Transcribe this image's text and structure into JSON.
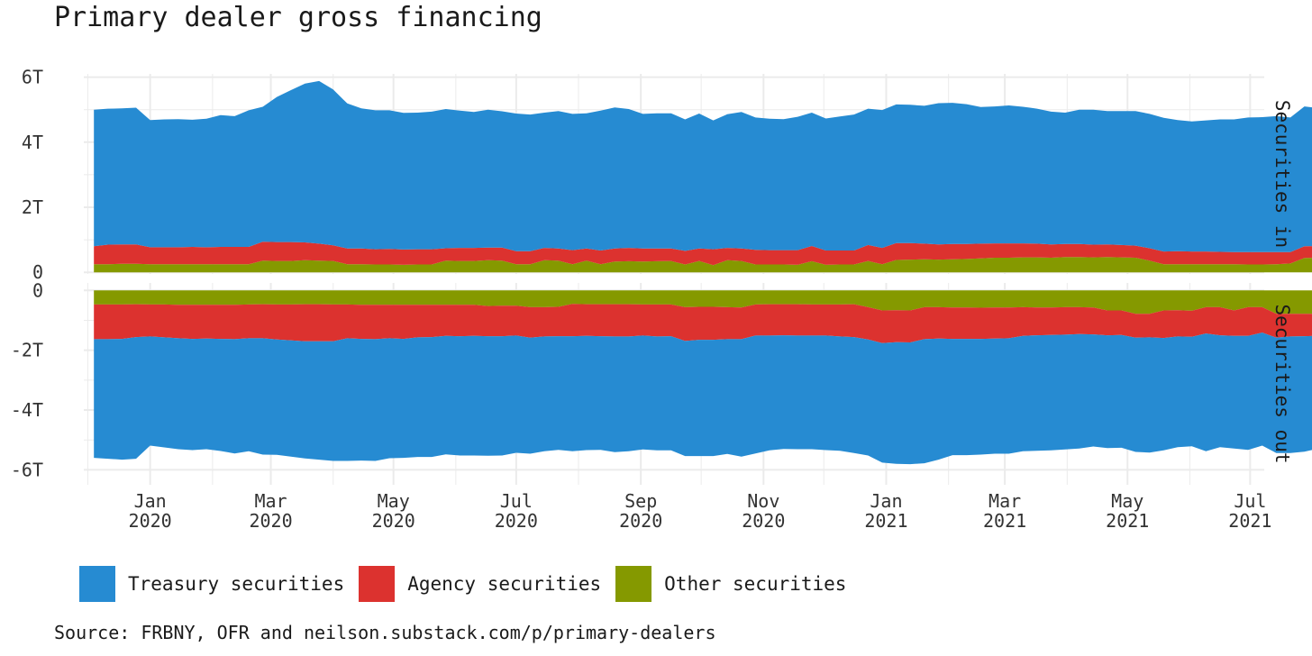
{
  "title": "Primary dealer gross financing",
  "caption": "Source: FRBNY, OFR and neilson.substack.com/p/primary-dealers",
  "colors": {
    "treasury": "#268bd2",
    "agency": "#dc322f",
    "other": "#859900",
    "grid": "#ebebeb"
  },
  "legend": [
    {
      "label": "Treasury securities",
      "color": "#268bd2"
    },
    {
      "label": "Agency securities",
      "color": "#dc322f"
    },
    {
      "label": "Other securities",
      "color": "#859900"
    }
  ],
  "chart_data": {
    "type": "area",
    "title": "Primary dealer gross financing",
    "x_start": "2019-12-04",
    "x_step_days": 7,
    "x_range": [
      "2019-11-29",
      "2021-07-08"
    ],
    "x_ticks": [
      {
        "date": "2020-01-01",
        "label": [
          "Jan",
          "2020"
        ]
      },
      {
        "date": "2020-03-01",
        "label": [
          "Mar",
          "2020"
        ]
      },
      {
        "date": "2020-05-01",
        "label": [
          "May",
          "2020"
        ]
      },
      {
        "date": "2020-07-01",
        "label": [
          "Jul",
          "2020"
        ]
      },
      {
        "date": "2020-09-01",
        "label": [
          "Sep",
          "2020"
        ]
      },
      {
        "date": "2020-11-01",
        "label": [
          "Nov",
          "2020"
        ]
      },
      {
        "date": "2021-01-01",
        "label": [
          "Jan",
          "2021"
        ]
      },
      {
        "date": "2021-03-01",
        "label": [
          "Mar",
          "2021"
        ]
      },
      {
        "date": "2021-05-01",
        "label": [
          "May",
          "2021"
        ]
      },
      {
        "date": "2021-07-01",
        "label": [
          "Jul",
          "2021"
        ]
      }
    ],
    "legend_position": "bottom",
    "panels": [
      {
        "facet_label": "Securities in",
        "y_range": [
          -0.05,
          6.1
        ],
        "y_ticks": [
          {
            "v": 0,
            "label": "0"
          },
          {
            "v": 2,
            "label": "2T"
          },
          {
            "v": 4,
            "label": "4T"
          },
          {
            "v": 6,
            "label": "6T"
          }
        ],
        "series": [
          {
            "name": "Other securities",
            "key": "other",
            "values": [
              0.25,
              0.25,
              0.26,
              0.26,
              0.25,
              0.25,
              0.25,
              0.25,
              0.25,
              0.25,
              0.25,
              0.25,
              0.36,
              0.35,
              0.35,
              0.37,
              0.36,
              0.35,
              0.25,
              0.25,
              0.24,
              0.24,
              0.23,
              0.24,
              0.24,
              0.36,
              0.35,
              0.35,
              0.37,
              0.36,
              0.25,
              0.25,
              0.37,
              0.36,
              0.25,
              0.36,
              0.25,
              0.33,
              0.34,
              0.33,
              0.34,
              0.35,
              0.24,
              0.35,
              0.22,
              0.37,
              0.35,
              0.24,
              0.24,
              0.24,
              0.23,
              0.34,
              0.23,
              0.24,
              0.24,
              0.35,
              0.25,
              0.38,
              0.39,
              0.4,
              0.39,
              0.4,
              0.41,
              0.43,
              0.45,
              0.45,
              0.46,
              0.46,
              0.45,
              0.47,
              0.47,
              0.46,
              0.47,
              0.46,
              0.45,
              0.36,
              0.25,
              0.25,
              0.25,
              0.25,
              0.25,
              0.25,
              0.24,
              0.24,
              0.25,
              0.27,
              0.44,
              0.45
            ]
          },
          {
            "name": "Agency securities",
            "key": "agency",
            "values": [
              0.55,
              0.6,
              0.6,
              0.6,
              0.52,
              0.52,
              0.52,
              0.53,
              0.52,
              0.53,
              0.53,
              0.53,
              0.58,
              0.58,
              0.58,
              0.55,
              0.52,
              0.48,
              0.48,
              0.48,
              0.47,
              0.48,
              0.47,
              0.47,
              0.47,
              0.38,
              0.4,
              0.4,
              0.39,
              0.4,
              0.4,
              0.4,
              0.38,
              0.37,
              0.43,
              0.37,
              0.42,
              0.4,
              0.41,
              0.4,
              0.39,
              0.38,
              0.42,
              0.38,
              0.49,
              0.38,
              0.38,
              0.45,
              0.44,
              0.44,
              0.45,
              0.47,
              0.44,
              0.43,
              0.43,
              0.49,
              0.5,
              0.52,
              0.51,
              0.48,
              0.47,
              0.47,
              0.46,
              0.45,
              0.44,
              0.44,
              0.43,
              0.42,
              0.41,
              0.4,
              0.4,
              0.39,
              0.39,
              0.38,
              0.37,
              0.38,
              0.39,
              0.4,
              0.39,
              0.39,
              0.38,
              0.37,
              0.38,
              0.38,
              0.37,
              0.35,
              0.36,
              0.36
            ]
          },
          {
            "name": "Treasury securities",
            "key": "treasury",
            "values": [
              4.2,
              4.18,
              4.18,
              4.2,
              3.91,
              3.93,
              3.94,
              3.91,
              3.95,
              4.05,
              4.02,
              4.2,
              4.15,
              4.46,
              4.67,
              4.88,
              5.0,
              4.79,
              4.46,
              4.31,
              4.27,
              4.26,
              4.2,
              4.2,
              4.23,
              4.28,
              4.22,
              4.18,
              4.24,
              4.19,
              4.23,
              4.2,
              4.16,
              4.23,
              4.19,
              4.16,
              4.3,
              4.34,
              4.27,
              4.14,
              4.16,
              4.16,
              4.04,
              4.15,
              3.96,
              4.11,
              4.2,
              4.07,
              4.04,
              4.03,
              4.1,
              4.1,
              4.06,
              4.12,
              4.18,
              4.19,
              4.24,
              4.26,
              4.25,
              4.24,
              4.34,
              4.34,
              4.3,
              4.2,
              4.21,
              4.24,
              4.2,
              4.15,
              4.08,
              4.04,
              4.13,
              4.15,
              4.1,
              4.12,
              4.14,
              4.13,
              4.11,
              4.03,
              4.0,
              4.03,
              4.07,
              4.08,
              4.14,
              4.15,
              4.18,
              4.14,
              4.3,
              4.24
            ]
          }
        ]
      },
      {
        "facet_label": "Securities out",
        "y_range": [
          -6.5,
          0.25
        ],
        "y_ticks": [
          {
            "v": 0,
            "label": "0"
          },
          {
            "v": -2,
            "label": "-2T"
          },
          {
            "v": -4,
            "label": "-4T"
          },
          {
            "v": -6,
            "label": "-6T"
          }
        ],
        "series": [
          {
            "name": "Other securities",
            "key": "other",
            "values": [
              -0.47,
              -0.47,
              -0.47,
              -0.46,
              -0.47,
              -0.47,
              -0.48,
              -0.48,
              -0.48,
              -0.48,
              -0.48,
              -0.47,
              -0.46,
              -0.47,
              -0.47,
              -0.46,
              -0.46,
              -0.47,
              -0.47,
              -0.48,
              -0.48,
              -0.48,
              -0.48,
              -0.48,
              -0.48,
              -0.48,
              -0.48,
              -0.48,
              -0.52,
              -0.51,
              -0.51,
              -0.56,
              -0.56,
              -0.55,
              -0.45,
              -0.46,
              -0.46,
              -0.46,
              -0.46,
              -0.47,
              -0.47,
              -0.47,
              -0.56,
              -0.55,
              -0.55,
              -0.56,
              -0.57,
              -0.47,
              -0.46,
              -0.46,
              -0.46,
              -0.47,
              -0.47,
              -0.47,
              -0.46,
              -0.56,
              -0.67,
              -0.66,
              -0.67,
              -0.56,
              -0.56,
              -0.57,
              -0.57,
              -0.58,
              -0.57,
              -0.57,
              -0.56,
              -0.57,
              -0.57,
              -0.56,
              -0.56,
              -0.57,
              -0.67,
              -0.67,
              -0.78,
              -0.78,
              -0.67,
              -0.66,
              -0.68,
              -0.56,
              -0.56,
              -0.67,
              -0.56,
              -0.56,
              -0.78,
              -0.78,
              -0.78,
              -0.78
            ]
          },
          {
            "name": "Agency securities",
            "key": "agency",
            "values": [
              -1.16,
              -1.16,
              -1.15,
              -1.1,
              -1.07,
              -1.1,
              -1.12,
              -1.14,
              -1.13,
              -1.14,
              -1.15,
              -1.13,
              -1.14,
              -1.17,
              -1.2,
              -1.24,
              -1.24,
              -1.23,
              -1.13,
              -1.14,
              -1.15,
              -1.12,
              -1.14,
              -1.09,
              -1.08,
              -1.04,
              -1.05,
              -1.04,
              -1.01,
              -1.02,
              -1.0,
              -1.02,
              -0.98,
              -0.98,
              -1.08,
              -1.06,
              -1.07,
              -1.08,
              -1.08,
              -1.04,
              -1.07,
              -1.06,
              -1.13,
              -1.1,
              -1.1,
              -1.07,
              -1.06,
              -1.04,
              -1.05,
              -1.04,
              -1.05,
              -1.04,
              -1.04,
              -1.07,
              -1.1,
              -1.08,
              -1.09,
              -1.07,
              -1.07,
              -1.07,
              -1.05,
              -1.05,
              -1.05,
              -1.04,
              -1.04,
              -1.03,
              -0.96,
              -0.93,
              -0.92,
              -0.92,
              -0.9,
              -0.9,
              -0.83,
              -0.82,
              -0.8,
              -0.79,
              -0.92,
              -0.88,
              -0.87,
              -0.88,
              -0.94,
              -0.85,
              -0.96,
              -0.85,
              -0.8,
              -0.76,
              -0.75,
              -0.74
            ]
          },
          {
            "name": "Treasury securities",
            "key": "treasury",
            "values": [
              -3.97,
              -4.0,
              -4.04,
              -4.07,
              -3.65,
              -3.68,
              -3.71,
              -3.72,
              -3.7,
              -3.75,
              -3.82,
              -3.78,
              -3.89,
              -3.86,
              -3.89,
              -3.92,
              -3.96,
              -4.0,
              -4.1,
              -4.07,
              -4.07,
              -4.01,
              -3.98,
              -4.0,
              -4.01,
              -3.96,
              -3.99,
              -4.0,
              -4.0,
              -3.99,
              -3.92,
              -3.88,
              -3.84,
              -3.8,
              -3.85,
              -3.82,
              -3.8,
              -3.87,
              -3.84,
              -3.81,
              -3.81,
              -3.82,
              -3.85,
              -3.89,
              -3.89,
              -3.84,
              -3.93,
              -3.94,
              -3.84,
              -3.8,
              -3.8,
              -3.8,
              -3.83,
              -3.82,
              -3.88,
              -3.88,
              -4.0,
              -4.07,
              -4.07,
              -4.15,
              -4.05,
              -3.89,
              -3.89,
              -3.87,
              -3.85,
              -3.86,
              -3.86,
              -3.86,
              -3.86,
              -3.84,
              -3.83,
              -3.75,
              -3.77,
              -3.77,
              -3.82,
              -3.85,
              -3.76,
              -3.7,
              -3.66,
              -3.94,
              -3.74,
              -3.77,
              -3.81,
              -3.78,
              -3.86,
              -3.9,
              -3.86,
              -3.77
            ]
          }
        ]
      }
    ]
  }
}
